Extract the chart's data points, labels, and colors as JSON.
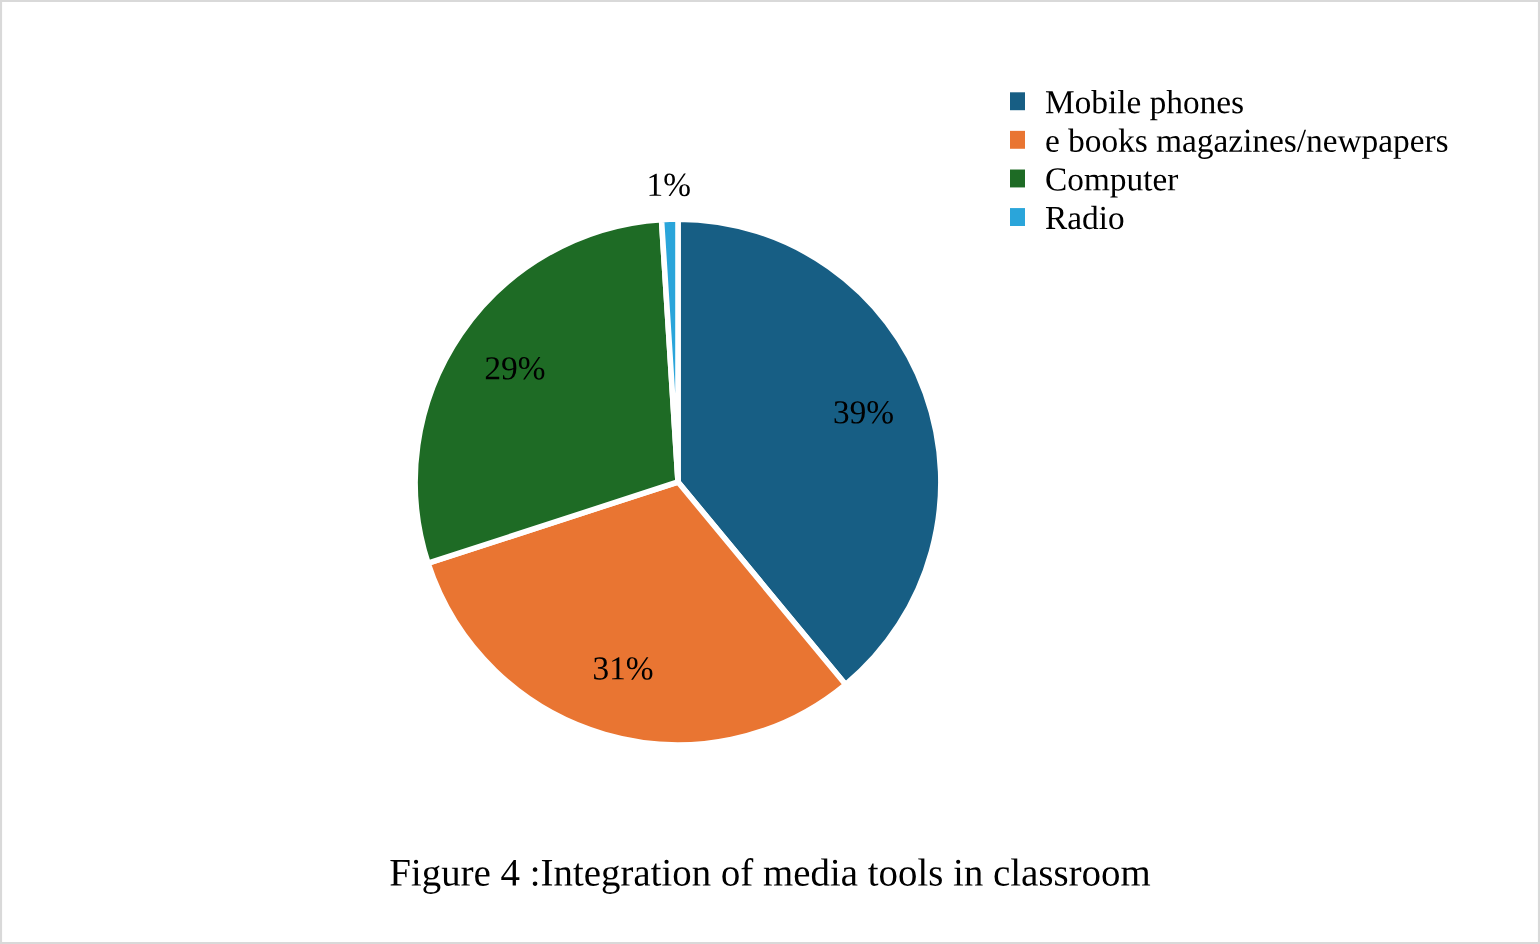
{
  "chart_data": {
    "type": "pie",
    "title": "Figure 4 :Integration of media tools in classroom",
    "categories": [
      "Mobile phones",
      "e books magazines/newpapers",
      "Computer",
      "Radio"
    ],
    "values": [
      39,
      31,
      29,
      1
    ],
    "colors": [
      "#175e84",
      "#e97532",
      "#1e6b25",
      "#2aa5da"
    ],
    "value_labels": [
      "39%",
      "31%",
      "29%",
      "1%"
    ],
    "legend": "top right"
  }
}
